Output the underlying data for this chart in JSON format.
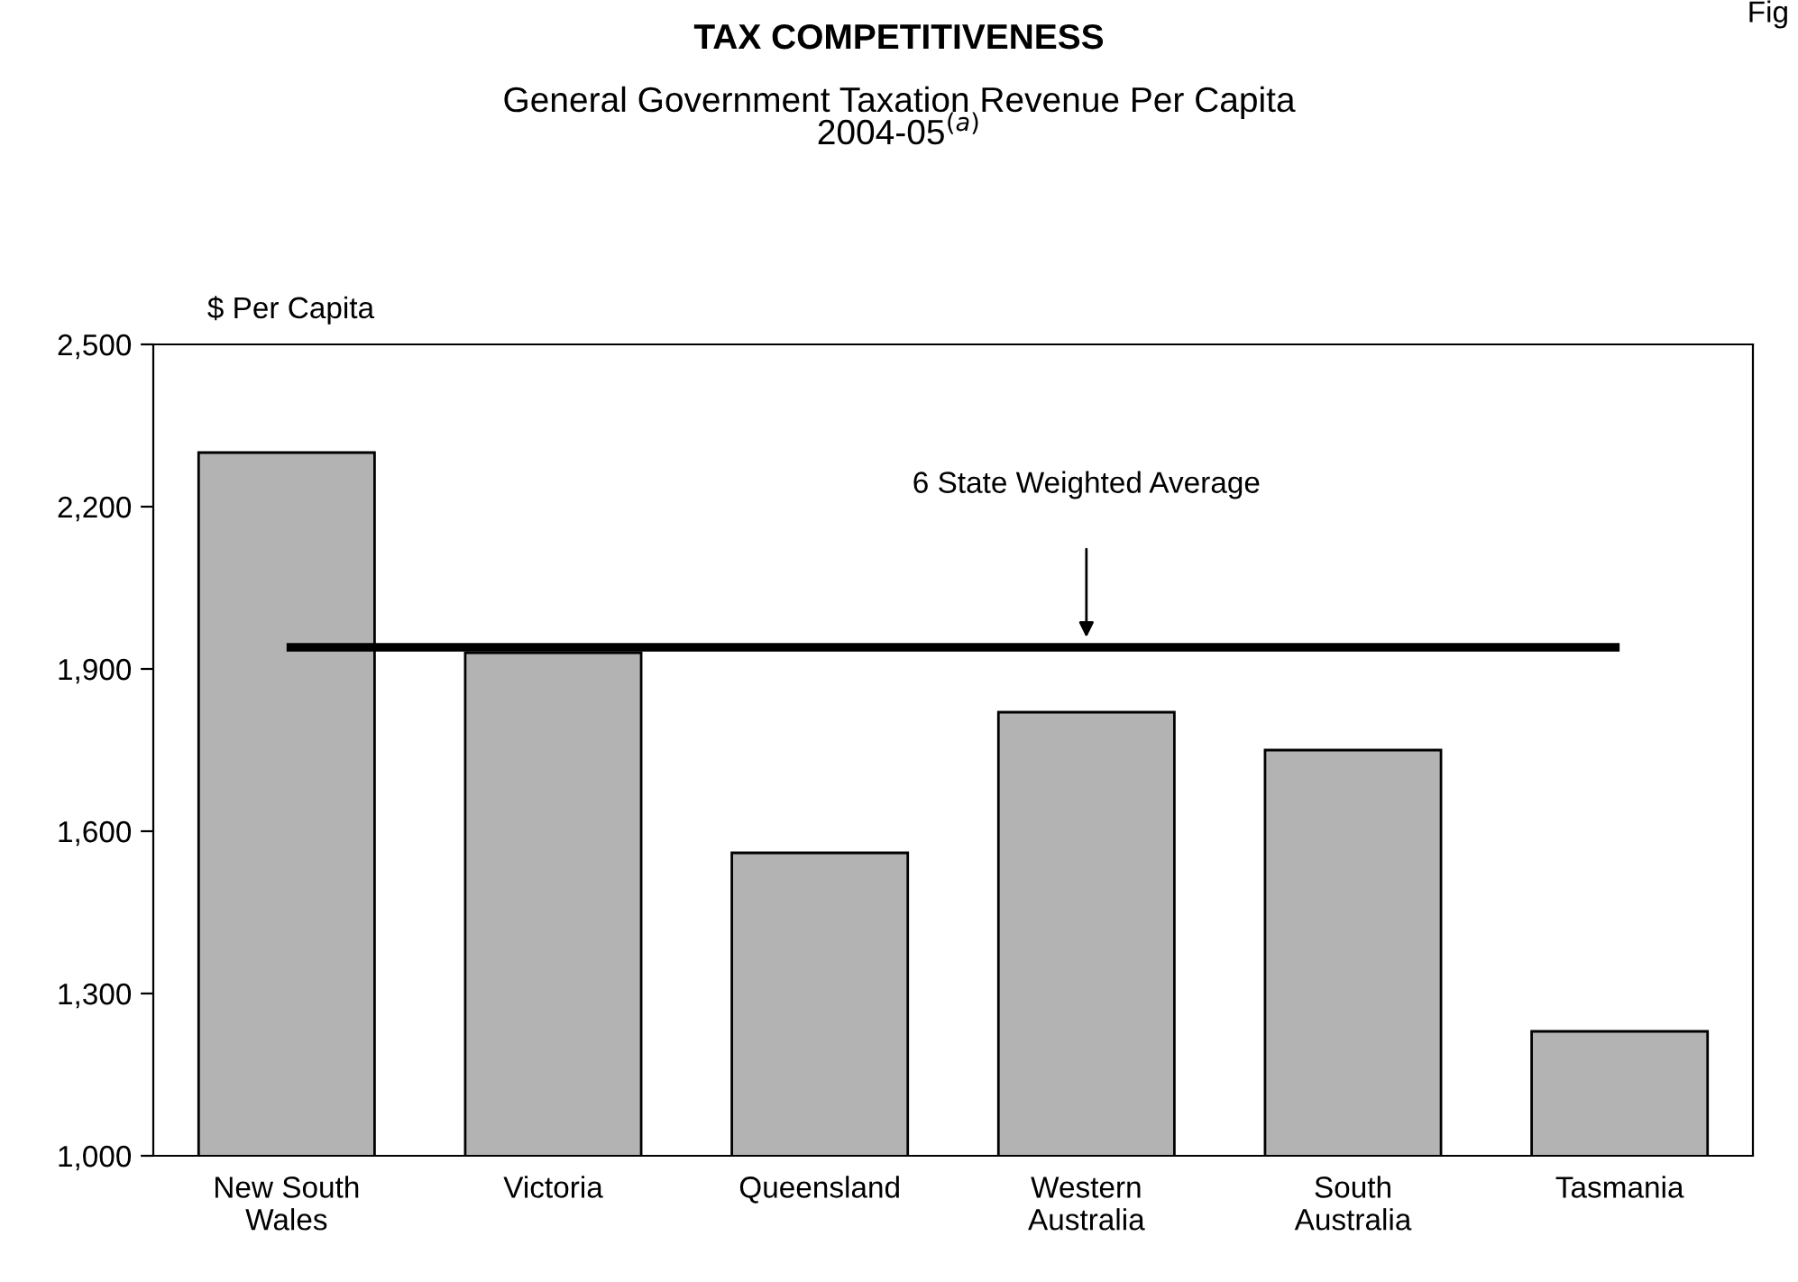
{
  "chart_data": {
    "type": "bar",
    "title": "TAX COMPETITIVENESS",
    "subtitle": "General Government Taxation Revenue Per Capita\n2004-05$^{(a)}$",
    "ylabel": "$ Per Capita",
    "categories": [
      "New South\nWales",
      "Victoria",
      "Queensland",
      "Western\nAustralia",
      "South\nAustralia",
      "Tasmania"
    ],
    "values": [
      2300,
      1930,
      1560,
      1820,
      1750,
      1230
    ],
    "color": "#b3b3b3",
    "ylim": [
      1000,
      2500
    ],
    "yticks": [
      {
        "value": 1000,
        "label": "1,000"
      },
      {
        "value": 1300,
        "label": "1,300"
      },
      {
        "value": 1600,
        "label": "1,600"
      },
      {
        "value": 1900,
        "label": "1,900"
      },
      {
        "value": 2200,
        "label": "2,200"
      },
      {
        "value": 2500,
        "label": "2,500"
      }
    ],
    "ref_lines": [
      {
        "axis": "y",
        "value": 1940,
        "label": "6 State Weighted Average",
        "color": "#000000",
        "line_style": "solid"
      }
    ],
    "annotations": [
      "Fig"
    ],
    "grid": false,
    "legend": false
  }
}
